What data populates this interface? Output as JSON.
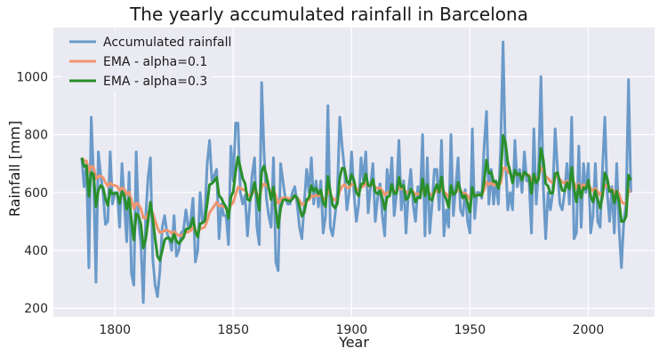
{
  "chart_data": {
    "type": "line",
    "title": "The yearly accumulated rainfall in Barcelona",
    "xlabel": "Year",
    "ylabel": "Rainfall [mm]",
    "xlim": [
      1774,
      2028
    ],
    "ylim": [
      170,
      1170
    ],
    "xticks": [
      1800,
      1850,
      1900,
      1950,
      2000
    ],
    "yticks": [
      200,
      400,
      600,
      800,
      1000
    ],
    "grid": true,
    "legend_position": "top-left",
    "colors": {
      "background": "#eaeaf2",
      "grid": "#ffffff",
      "rainfall": "#6a9ac9",
      "ema01": "#f0956e",
      "ema03": "#2a8f2a"
    },
    "x_start": 1786,
    "series": [
      {
        "name": "Accumulated rainfall",
        "values": [
          720,
          620,
          700,
          340,
          860,
          650,
          290,
          740,
          660,
          600,
          490,
          500,
          740,
          560,
          600,
          600,
          480,
          700,
          560,
          430,
          670,
          320,
          280,
          740,
          500,
          420,
          220,
          510,
          650,
          720,
          370,
          280,
          240,
          330,
          480,
          520,
          460,
          440,
          400,
          520,
          380,
          400,
          460,
          470,
          540,
          480,
          500,
          580,
          360,
          400,
          600,
          500,
          520,
          700,
          780,
          640,
          660,
          680,
          440,
          560,
          520,
          520,
          420,
          760,
          640,
          840,
          840,
          600,
          560,
          590,
          450,
          560,
          660,
          720,
          480,
          420,
          980,
          740,
          580,
          520,
          480,
          720,
          360,
          330,
          700,
          640,
          580,
          560,
          560,
          600,
          620,
          560,
          480,
          440,
          560,
          680,
          600,
          720,
          560,
          640,
          550,
          640,
          460,
          520,
          900,
          480,
          450,
          520,
          600,
          860,
          760,
          680,
          540,
          600,
          740,
          600,
          500,
          560,
          720,
          640,
          740,
          530,
          620,
          700,
          500,
          580,
          630,
          520,
          450,
          680,
          600,
          720,
          520,
          600,
          780,
          540,
          640,
          460,
          600,
          680,
          560,
          500,
          620,
          580,
          800,
          450,
          720,
          460,
          560,
          680,
          680,
          540,
          780,
          450,
          540,
          480,
          800,
          520,
          620,
          720,
          540,
          520,
          610,
          500,
          460,
          820,
          510,
          600,
          600,
          580,
          760,
          880,
          560,
          680,
          560,
          640,
          560,
          760,
          1120,
          720,
          540,
          600,
          540,
          780,
          620,
          680,
          600,
          740,
          640,
          640,
          460,
          820,
          560,
          680,
          1000,
          620,
          440,
          600,
          540,
          600,
          820,
          680,
          560,
          540,
          600,
          700,
          560,
          860,
          440,
          460,
          760,
          480,
          700,
          600,
          700,
          460,
          520,
          700,
          500,
          480,
          680,
          860,
          600,
          500,
          620,
          460,
          700,
          480,
          340,
          500,
          560,
          990,
          600
        ]
      },
      {
        "name": "EMA - alpha=0.1",
        "values": [
          720,
          710,
          709,
          672,
          691,
          687,
          647,
          656,
          657,
          651,
          635,
          622,
          633,
          626,
          624,
          621,
          607,
          616,
          611,
          593,
          601,
          573,
          544,
          564,
          558,
          544,
          512,
          512,
          526,
          545,
          528,
          503,
          477,
          462,
          464,
          469,
          469,
          466,
          459,
          465,
          457,
          451,
          452,
          454,
          462,
          464,
          468,
          479,
          467,
          460,
          474,
          477,
          481,
          503,
          531,
          542,
          554,
          566,
          553,
          554,
          550,
          547,
          534,
          557,
          565,
          593,
          618,
          616,
          610,
          608,
          592,
          589,
          596,
          609,
          596,
          578,
          618,
          630,
          625,
          614,
          601,
          613,
          588,
          562,
          576,
          582,
          582,
          580,
          578,
          580,
          584,
          582,
          572,
          559,
          559,
          571,
          574,
          589,
          586,
          592,
          588,
          593,
          580,
          574,
          607,
          594,
          580,
          574,
          577,
          605,
          621,
          627,
          618,
          616,
          629,
          626,
          613,
          608,
          619,
          621,
          633,
          623,
          623,
          631,
          618,
          614,
          616,
          606,
          591,
          600,
          600,
          612,
          603,
          603,
          620,
          612,
          615,
          600,
          600,
          608,
          603,
          593,
          596,
          594,
          615,
          598,
          610,
          595,
          591,
          600,
          608,
          601,
          619,
          602,
          596,
          584,
          606,
          597,
          600,
          612,
          605,
          597,
          598,
          589,
          576,
          600,
          591,
          592,
          593,
          592,
          609,
          636,
          628,
          633,
          626,
          627,
          620,
          634,
          683,
          686,
          672,
          665,
          652,
          665,
          660,
          662,
          656,
          664,
          662,
          660,
          640,
          658,
          648,
          651,
          686,
          679,
          655,
          649,
          638,
          634,
          653,
          656,
          646,
          636,
          632,
          639,
          631,
          654,
          633,
          615,
          630,
          615,
          627,
          624,
          632,
          614,
          605,
          614,
          603,
          591,
          600,
          626,
          623,
          611,
          612,
          597,
          607,
          595,
          569,
          562,
          562,
          605,
          605
        ]
      },
      {
        "name": "EMA - alpha=0.3",
        "values": [
          720,
          690,
          693,
          587,
          669,
          663,
          551,
          608,
          624,
          617,
          579,
          555,
          610,
          595,
          597,
          598,
          562,
          603,
          590,
          542,
          581,
          503,
          436,
          527,
          519,
          489,
          408,
          438,
          502,
          567,
          508,
          440,
          380,
          365,
          400,
          436,
          443,
          442,
          429,
          456,
          433,
          423,
          434,
          445,
          473,
          475,
          482,
          512,
          466,
          446,
          492,
          495,
          502,
          562,
          627,
          631,
          640,
          652,
          589,
          580,
          562,
          549,
          510,
          585,
          602,
          673,
          723,
          686,
          648,
          631,
          577,
          572,
          598,
          635,
          589,
          538,
          671,
          692,
          658,
          616,
          575,
          619,
          541,
          478,
          545,
          574,
          576,
          572,
          569,
          578,
          590,
          581,
          551,
          518,
          531,
          575,
          582,
          624,
          605,
          615,
          595,
          609,
          564,
          551,
          656,
          603,
          557,
          546,
          562,
          651,
          684,
          683,
          640,
          628,
          662,
          643,
          600,
          588,
          628,
          632,
          664,
          624,
          623,
          646,
          602,
          595,
          606,
          580,
          541,
          583,
          588,
          628,
          595,
          597,
          652,
          618,
          624,
          575,
          583,
          612,
          596,
          567,
          583,
          582,
          647,
          588,
          628,
          578,
          573,
          605,
          628,
          601,
          654,
          593,
          577,
          548,
          624,
          592,
          600,
          636,
          607,
          581,
          590,
          563,
          532,
          618,
          586,
          590,
          593,
          589,
          640,
          712,
          666,
          670,
          637,
          638,
          614,
          658,
          797,
          774,
          704,
          673,
          633,
          677,
          660,
          666,
          642,
          671,
          662,
          655,
          597,
          664,
          633,
          647,
          753,
          713,
          631,
          622,
          597,
          598,
          665,
          669,
          636,
          607,
          605,
          634,
          612,
          687,
          613,
          567,
          625,
          582,
          617,
          612,
          642,
          587,
          567,
          607,
          575,
          546,
          586,
          668,
          648,
          603,
          608,
          564,
          605,
          568,
          500,
          500,
          518,
          660,
          642
        ]
      }
    ]
  }
}
